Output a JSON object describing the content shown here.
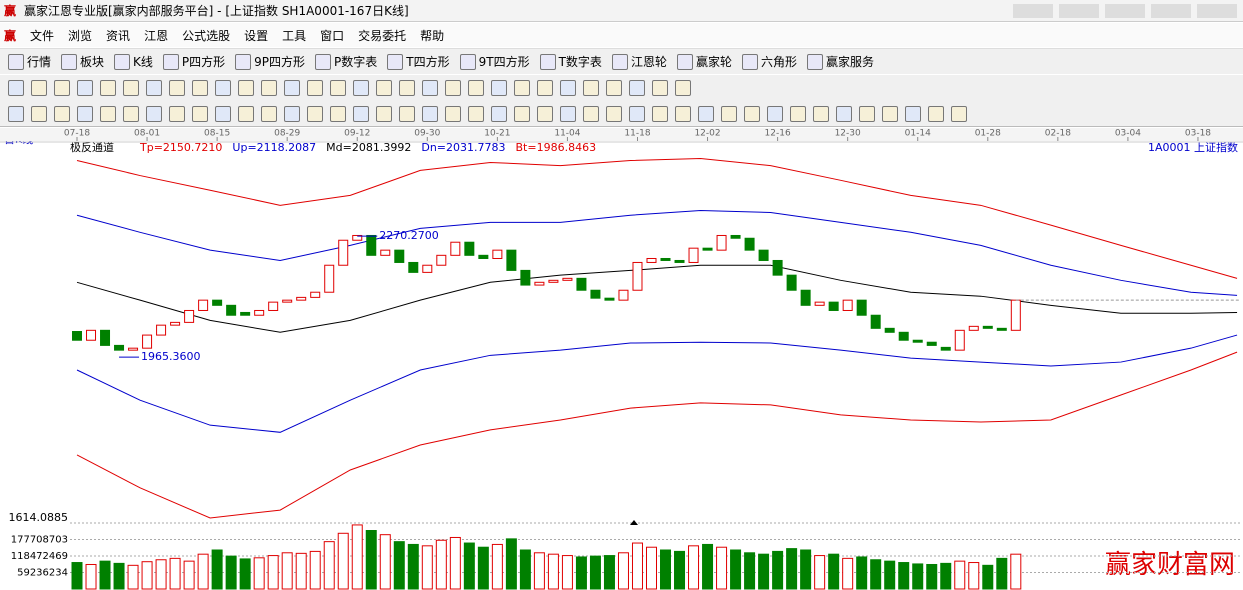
{
  "window": {
    "title": "赢家江恩专业版[赢家内部服务平台] - [上证指数  SH1A0001-167日K线]",
    "menu": [
      "文件",
      "浏览",
      "资讯",
      "江恩",
      "公式选股",
      "设置",
      "工具",
      "窗口",
      "交易委托",
      "帮助"
    ],
    "toolbar": [
      "行情",
      "板块",
      "K线",
      "P四方形",
      "9P四方形",
      "P数字表",
      "T四方形",
      "9T四方形",
      "T数字表",
      "江恩轮",
      "赢家轮",
      "六角形",
      "赢家服务"
    ]
  },
  "chart_data": {
    "type": "candlestick",
    "period_label": "日K线",
    "indicator": "极反通道",
    "indicator_values": [
      {
        "label": "Tp=2150.7210",
        "color": "#e00000"
      },
      {
        "label": "Up=2118.2087",
        "color": "#0000cc"
      },
      {
        "label": "Md=2081.3992",
        "color": "#000000"
      },
      {
        "label": "Dn=2031.7783",
        "color": "#0000cc"
      },
      {
        "label": "Bt=1986.8463",
        "color": "#e00000"
      }
    ],
    "symbol_label": "1A0001  上证指数",
    "xlim": [
      -0.5,
      83
    ],
    "xticks": [
      {
        "value": 0,
        "label": "07-18"
      },
      {
        "value": 5,
        "label": "08-01"
      },
      {
        "value": 10,
        "label": "08-15"
      },
      {
        "value": 15,
        "label": "08-29"
      },
      {
        "value": 20,
        "label": "09-12"
      },
      {
        "value": 25,
        "label": "09-30"
      },
      {
        "value": 30,
        "label": "10-21"
      },
      {
        "value": 35,
        "label": "11-04"
      },
      {
        "value": 40,
        "label": "11-18"
      },
      {
        "value": 45,
        "label": "12-02"
      },
      {
        "value": 50,
        "label": "12-16"
      },
      {
        "value": 55,
        "label": "12-30"
      },
      {
        "value": 60,
        "label": "01-14"
      },
      {
        "value": 65,
        "label": "01-28"
      },
      {
        "value": 70,
        "label": "02-18"
      },
      {
        "value": 75,
        "label": "03-04"
      },
      {
        "value": 80,
        "label": "03-18"
      }
    ],
    "ylim": [
      1555,
      2500
    ],
    "open": [
      2030,
      2008,
      2033,
      1995,
      1983,
      1988,
      2021,
      2046,
      2053,
      2083,
      2109,
      2096,
      2078,
      2071,
      2083,
      2104,
      2109,
      2116,
      2129,
      2197,
      2260,
      2272,
      2222,
      2235,
      2204,
      2179,
      2197,
      2222,
      2255,
      2222,
      2214,
      2235,
      2184,
      2147,
      2154,
      2159,
      2164,
      2134,
      2114,
      2109,
      2134,
      2204,
      2214,
      2209,
      2204,
      2240,
      2235,
      2272,
      2265,
      2235,
      2209,
      2172,
      2134,
      2096,
      2104,
      2083,
      2109,
      2071,
      2038,
      2028,
      2008,
      2003,
      1990,
      1983,
      2033,
      2043,
      2038,
      2033
    ],
    "close": [
      2008,
      2033,
      1995,
      1983,
      1988,
      2021,
      2046,
      2053,
      2083,
      2109,
      2096,
      2071,
      2071,
      2083,
      2104,
      2109,
      2116,
      2129,
      2197,
      2260,
      2272,
      2222,
      2235,
      2204,
      2179,
      2197,
      2222,
      2255,
      2222,
      2214,
      2235,
      2184,
      2147,
      2154,
      2159,
      2164,
      2134,
      2114,
      2109,
      2134,
      2204,
      2214,
      2209,
      2204,
      2240,
      2235,
      2272,
      2265,
      2235,
      2209,
      2172,
      2134,
      2096,
      2104,
      2083,
      2109,
      2071,
      2038,
      2028,
      2008,
      2003,
      1995,
      1983,
      2033,
      2043,
      2038,
      2033,
      2109
    ],
    "up_color": "#e00000",
    "down_color": "#008000",
    "bands": {
      "x": [
        0,
        4.5,
        9.5,
        14.5,
        19.5,
        24.5,
        29.5,
        34.5,
        39.5,
        44.5,
        49.5,
        54.5,
        59.5,
        64.5,
        69.5,
        74.5,
        79.5,
        82.79
      ],
      "series": [
        {
          "color": "#e00000",
          "values": [
            2461,
            2423,
            2386,
            2348,
            2373,
            2436,
            2456,
            2448,
            2461,
            2466,
            2448,
            2411,
            2373,
            2348,
            2298,
            2247,
            2197,
            2164
          ]
        },
        {
          "color": "#0000cc",
          "values": [
            2323,
            2280,
            2235,
            2209,
            2247,
            2290,
            2305,
            2305,
            2323,
            2335,
            2330,
            2305,
            2280,
            2247,
            2197,
            2159,
            2129,
            2121
          ]
        },
        {
          "color": "#000000",
          "values": [
            2154,
            2109,
            2058,
            2028,
            2058,
            2109,
            2154,
            2172,
            2184,
            2197,
            2197,
            2159,
            2129,
            2119,
            2096,
            2076,
            2076,
            2078
          ]
        },
        {
          "color": "#0000cc",
          "values": [
            1933,
            1857,
            1794,
            1776,
            1857,
            1933,
            1970,
            1983,
            2001,
            2003,
            2001,
            1983,
            1963,
            1953,
            1943,
            1953,
            1988,
            2021
          ]
        },
        {
          "color": "#e00000",
          "values": [
            1719,
            1636,
            1560,
            1580,
            1681,
            1744,
            1782,
            1807,
            1837,
            1850,
            1845,
            1820,
            1807,
            1802,
            1807,
            1870,
            1933,
            1978
          ]
        }
      ]
    },
    "annotations": [
      {
        "x": 20,
        "value": 2270.27,
        "label": "2270.2700"
      },
      {
        "x": 3,
        "value": 1965.36,
        "label": "1965.3600"
      }
    ],
    "volume": {
      "values": [
        95000000,
        88000000,
        100000000,
        92000000,
        85000000,
        98000000,
        105000000,
        110000000,
        100000000,
        125000000,
        140000000,
        118000000,
        108000000,
        112000000,
        120000000,
        130000000,
        128000000,
        135000000,
        170000000,
        200000000,
        230000000,
        210000000,
        195000000,
        170000000,
        160000000,
        155000000,
        175000000,
        185000000,
        165000000,
        150000000,
        160000000,
        180000000,
        140000000,
        130000000,
        125000000,
        120000000,
        115000000,
        118000000,
        120000000,
        130000000,
        165000000,
        150000000,
        140000000,
        135000000,
        155000000,
        160000000,
        150000000,
        140000000,
        130000000,
        125000000,
        135000000,
        145000000,
        140000000,
        120000000,
        125000000,
        110000000,
        115000000,
        105000000,
        100000000,
        95000000,
        90000000,
        88000000,
        92000000,
        100000000,
        95000000,
        85000000,
        110000000,
        125000000
      ],
      "ylim": [
        0,
        236944938
      ],
      "yticks": [
        59236234,
        118472469,
        177708703
      ],
      "top_label": "1614.0885"
    }
  },
  "watermark": "赢家财富网"
}
